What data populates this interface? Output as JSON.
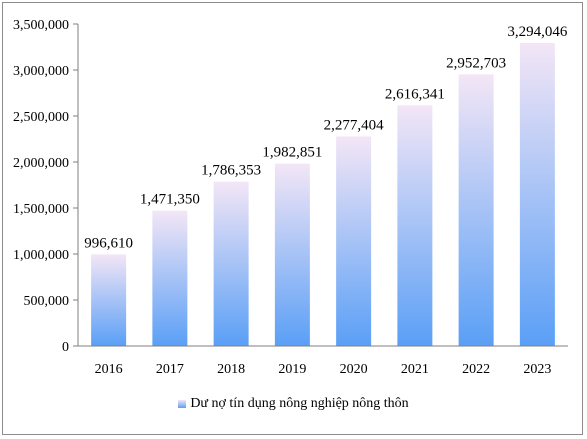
{
  "chart_data": {
    "type": "bar",
    "categories": [
      "2016",
      "2017",
      "2018",
      "2019",
      "2020",
      "2021",
      "2022",
      "2023"
    ],
    "series": [
      {
        "name": "Dư nợ tín dụng nông nghiệp nông thôn",
        "values": [
          996610,
          1471350,
          1786353,
          1982851,
          2277404,
          2616341,
          2952703,
          3294046
        ]
      }
    ],
    "data_labels": [
      "996,610",
      "1,471,350",
      "1,786,353",
      "1,982,851",
      "2,277,404",
      "2,616,341",
      "2,952,703",
      "3,294,046"
    ],
    "y_ticks": [
      "0",
      "500,000",
      "1,000,000",
      "1,500,000",
      "2,000,000",
      "2,500,000",
      "3,000,000",
      "3,500,000"
    ],
    "ylim": [
      0,
      3500000
    ],
    "grid": false,
    "legend_position": "bottom",
    "colors": {
      "bar_top": "#f3e6f6",
      "bar_bottom": "#5a9ff6",
      "axis": "#7f7f7f"
    }
  }
}
